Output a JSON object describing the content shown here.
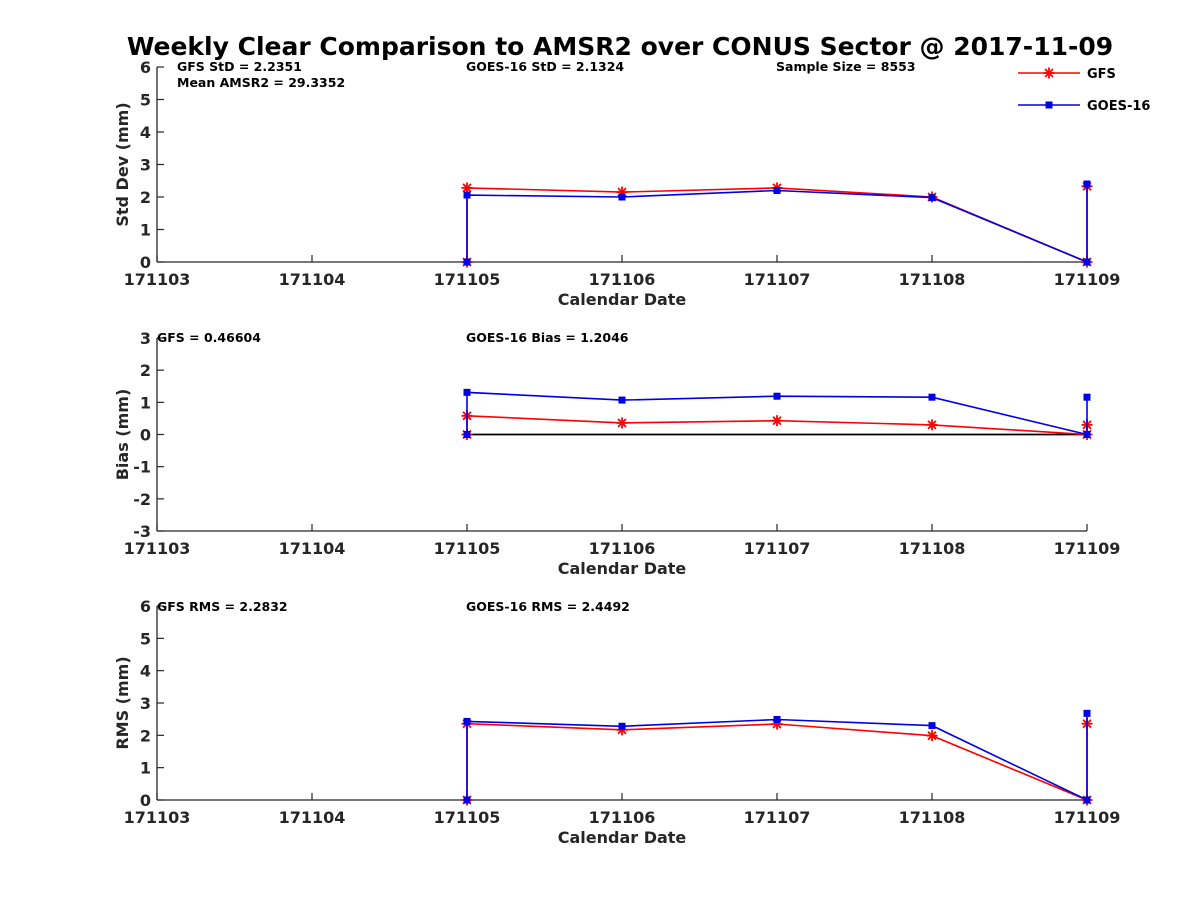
{
  "title": "Weekly Clear Comparison to AMSR2 over CONUS Sector @ 2017-11-09",
  "legend": [
    {
      "name": "GFS",
      "color": "#ff0000",
      "marker": "asterisk"
    },
    {
      "name": "GOES-16",
      "color": "#0000e6",
      "marker": "square"
    }
  ],
  "chart_data": [
    {
      "type": "line",
      "ylabel": "Std Dev (mm)",
      "xlabel": "Calendar Date",
      "xlim": [
        171103,
        171109
      ],
      "ylim": [
        0,
        6
      ],
      "xticks": [
        "171103",
        "171104",
        "171105",
        "171106",
        "171107",
        "171108",
        "171109"
      ],
      "yticks": [
        "0",
        "1",
        "2",
        "3",
        "4",
        "5",
        "6"
      ],
      "annotations": [
        "GFS StD = 2.2351",
        "Mean AMSR2 = 29.3352",
        "GOES-16 StD = 2.1324",
        "Sample Size = 8553"
      ],
      "series": [
        {
          "name": "GFS",
          "color": "#ff0000",
          "x": [
            171105,
            171105,
            171106,
            171107,
            171108,
            171109,
            171109
          ],
          "values": [
            0,
            2.28,
            2.15,
            2.28,
            2.0,
            0,
            2.33
          ]
        },
        {
          "name": "GOES-16",
          "color": "#0000e6",
          "x": [
            171105,
            171105,
            171106,
            171107,
            171108,
            171109,
            171109
          ],
          "values": [
            0,
            2.06,
            2.0,
            2.2,
            1.98,
            0,
            2.4
          ]
        }
      ]
    },
    {
      "type": "line",
      "ylabel": "Bias (mm)",
      "xlabel": "Calendar Date",
      "xlim": [
        171103,
        171109
      ],
      "ylim": [
        -3,
        3
      ],
      "xticks": [
        "171103",
        "171104",
        "171105",
        "171106",
        "171107",
        "171108",
        "171109"
      ],
      "yticks": [
        "-3",
        "-2",
        "-1",
        "0",
        "1",
        "2",
        "3"
      ],
      "annotations": [
        "GFS = 0.46604",
        "GOES-16 Bias  = 1.2046"
      ],
      "zero_line": true,
      "series": [
        {
          "name": "GFS",
          "color": "#ff0000",
          "x": [
            171105,
            171105,
            171106,
            171107,
            171108,
            171109,
            171109
          ],
          "values": [
            0,
            0.58,
            0.36,
            0.43,
            0.3,
            0,
            0.3
          ]
        },
        {
          "name": "GOES-16",
          "color": "#0000e6",
          "x": [
            171105,
            171105,
            171106,
            171107,
            171108,
            171109,
            171109
          ],
          "values": [
            0,
            1.31,
            1.07,
            1.19,
            1.16,
            0,
            1.16
          ]
        }
      ]
    },
    {
      "type": "line",
      "ylabel": "RMS (mm)",
      "xlabel": "Calendar Date",
      "xlim": [
        171103,
        171109
      ],
      "ylim": [
        0,
        6
      ],
      "xticks": [
        "171103",
        "171104",
        "171105",
        "171106",
        "171107",
        "171108",
        "171109"
      ],
      "yticks": [
        "0",
        "1",
        "2",
        "3",
        "4",
        "5",
        "6"
      ],
      "annotations": [
        "GFS RMS = 2.2832",
        "GOES-16 RMS = 2.4492"
      ],
      "series": [
        {
          "name": "GFS",
          "color": "#ff0000",
          "x": [
            171105,
            171105,
            171106,
            171107,
            171108,
            171109,
            171109
          ],
          "values": [
            0,
            2.36,
            2.17,
            2.35,
            1.99,
            0,
            2.36
          ]
        },
        {
          "name": "GOES-16",
          "color": "#0000e6",
          "x": [
            171105,
            171105,
            171106,
            171107,
            171108,
            171109,
            171109
          ],
          "values": [
            0,
            2.43,
            2.28,
            2.49,
            2.3,
            0,
            2.68
          ]
        }
      ]
    }
  ]
}
